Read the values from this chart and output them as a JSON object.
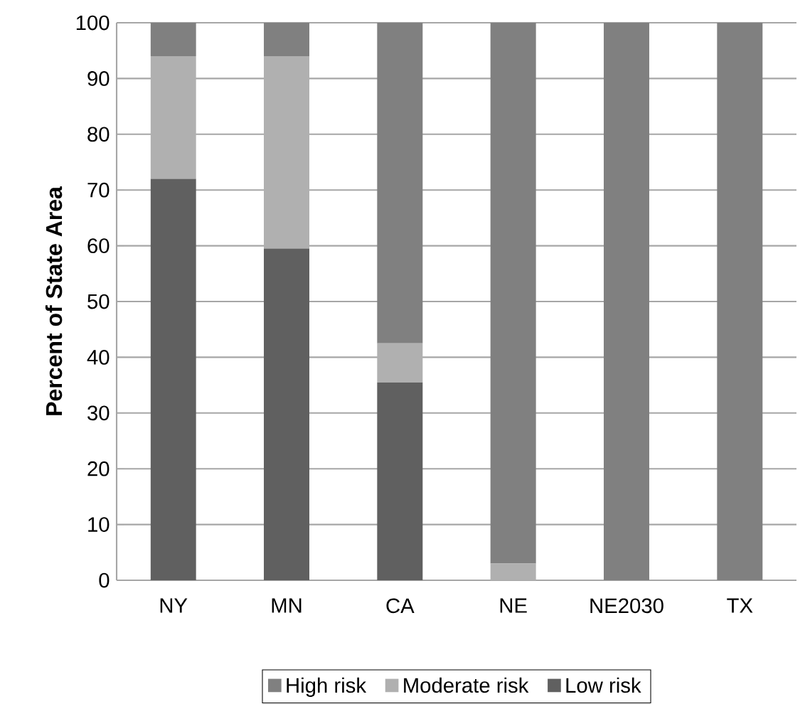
{
  "chart_data": {
    "type": "bar",
    "stacked": true,
    "ylabel": "Percent of State Area",
    "categories": [
      "NY",
      "MN",
      "CA",
      "NE",
      "NE2030",
      "TX"
    ],
    "series": [
      {
        "name": "Low risk",
        "color": "#606060",
        "values": [
          72,
          59.5,
          35.5,
          0,
          0,
          0
        ]
      },
      {
        "name": "Moderate risk",
        "color": "#b0b0b0",
        "values": [
          22,
          34.5,
          7,
          3,
          0,
          0
        ]
      },
      {
        "name": "High risk",
        "color": "#808080",
        "values": [
          6,
          6,
          57.5,
          97,
          100,
          100
        ]
      }
    ],
    "ylim": [
      0,
      100
    ],
    "yticks": [
      0,
      10,
      20,
      30,
      40,
      50,
      60,
      70,
      80,
      90,
      100
    ],
    "grid": "y",
    "legend": "bottom"
  }
}
